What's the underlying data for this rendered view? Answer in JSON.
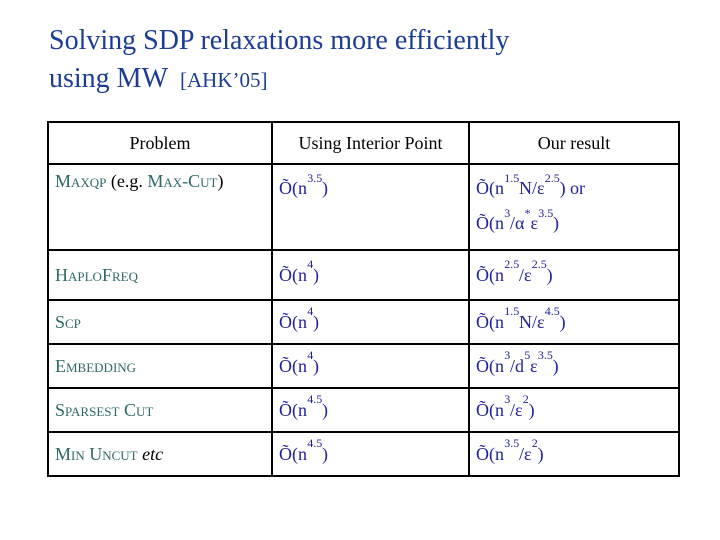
{
  "title": {
    "line1": "Solving SDP relaxations more efficiently",
    "line2": "using MW",
    "ref": "[AHK’05]"
  },
  "colors": {
    "title_blue": "#1c3c96",
    "problem_teal": "#2e6868",
    "formula_navy": "#22229b",
    "text_black": "#000000",
    "table_border": "#000000",
    "background": "#ffffff"
  },
  "table": {
    "headers": [
      "Problem",
      "Using Interior Point",
      "Our result"
    ],
    "rows": [
      {
        "problem": [
          {
            "text": "MAXQP",
            "display": "Maxqp",
            "style": "name"
          },
          {
            "text": " (e.g. ",
            "style": "plain"
          },
          {
            "text": "MAX-CUT",
            "display": "Max-Cut",
            "style": "name"
          },
          {
            "text": ")",
            "style": "plain"
          }
        ],
        "interior": [
          "Õ(n^{3.5})"
        ],
        "result": [
          "Õ(n^{1.5}N/ε^{2.5}) or",
          "Õ(n^{3}/α^{*}ε^{3.5})"
        ]
      },
      {
        "problem": [
          {
            "text": "HAPLOFREQ",
            "display": "HaploFreq",
            "style": "name"
          }
        ],
        "interior": [
          "Õ(n^{4})"
        ],
        "result": [
          "Õ(n^{2.5}/ε^{2.5})"
        ]
      },
      {
        "problem": [
          {
            "text": "SCP",
            "display": "Scp",
            "style": "name"
          }
        ],
        "interior": [
          "Õ(n^{4})"
        ],
        "result": [
          "Õ(n^{1.5}N/ε^{4.5})"
        ]
      },
      {
        "problem": [
          {
            "text": "EMBEDDING",
            "display": "Embedding",
            "style": "name"
          }
        ],
        "interior": [
          "Õ(n^{4})"
        ],
        "result": [
          "Õ(n^{3}/d^{5}ε^{3.5})"
        ]
      },
      {
        "problem": [
          {
            "text": "SPARSEST CUT",
            "display": "Sparsest Cut",
            "style": "name"
          }
        ],
        "interior": [
          "Õ(n^{4.5})"
        ],
        "result": [
          "Õ(n^{3}/ε^{2})"
        ]
      },
      {
        "problem": [
          {
            "text": "MIN UNCUT",
            "display": "Min Uncut",
            "style": "name"
          },
          {
            "text": " etc",
            "style": "italic"
          }
        ],
        "interior": [
          "Õ(n^{4.5})"
        ],
        "result": [
          "Õ(n^{3.5}/ε^{2})"
        ]
      }
    ]
  }
}
